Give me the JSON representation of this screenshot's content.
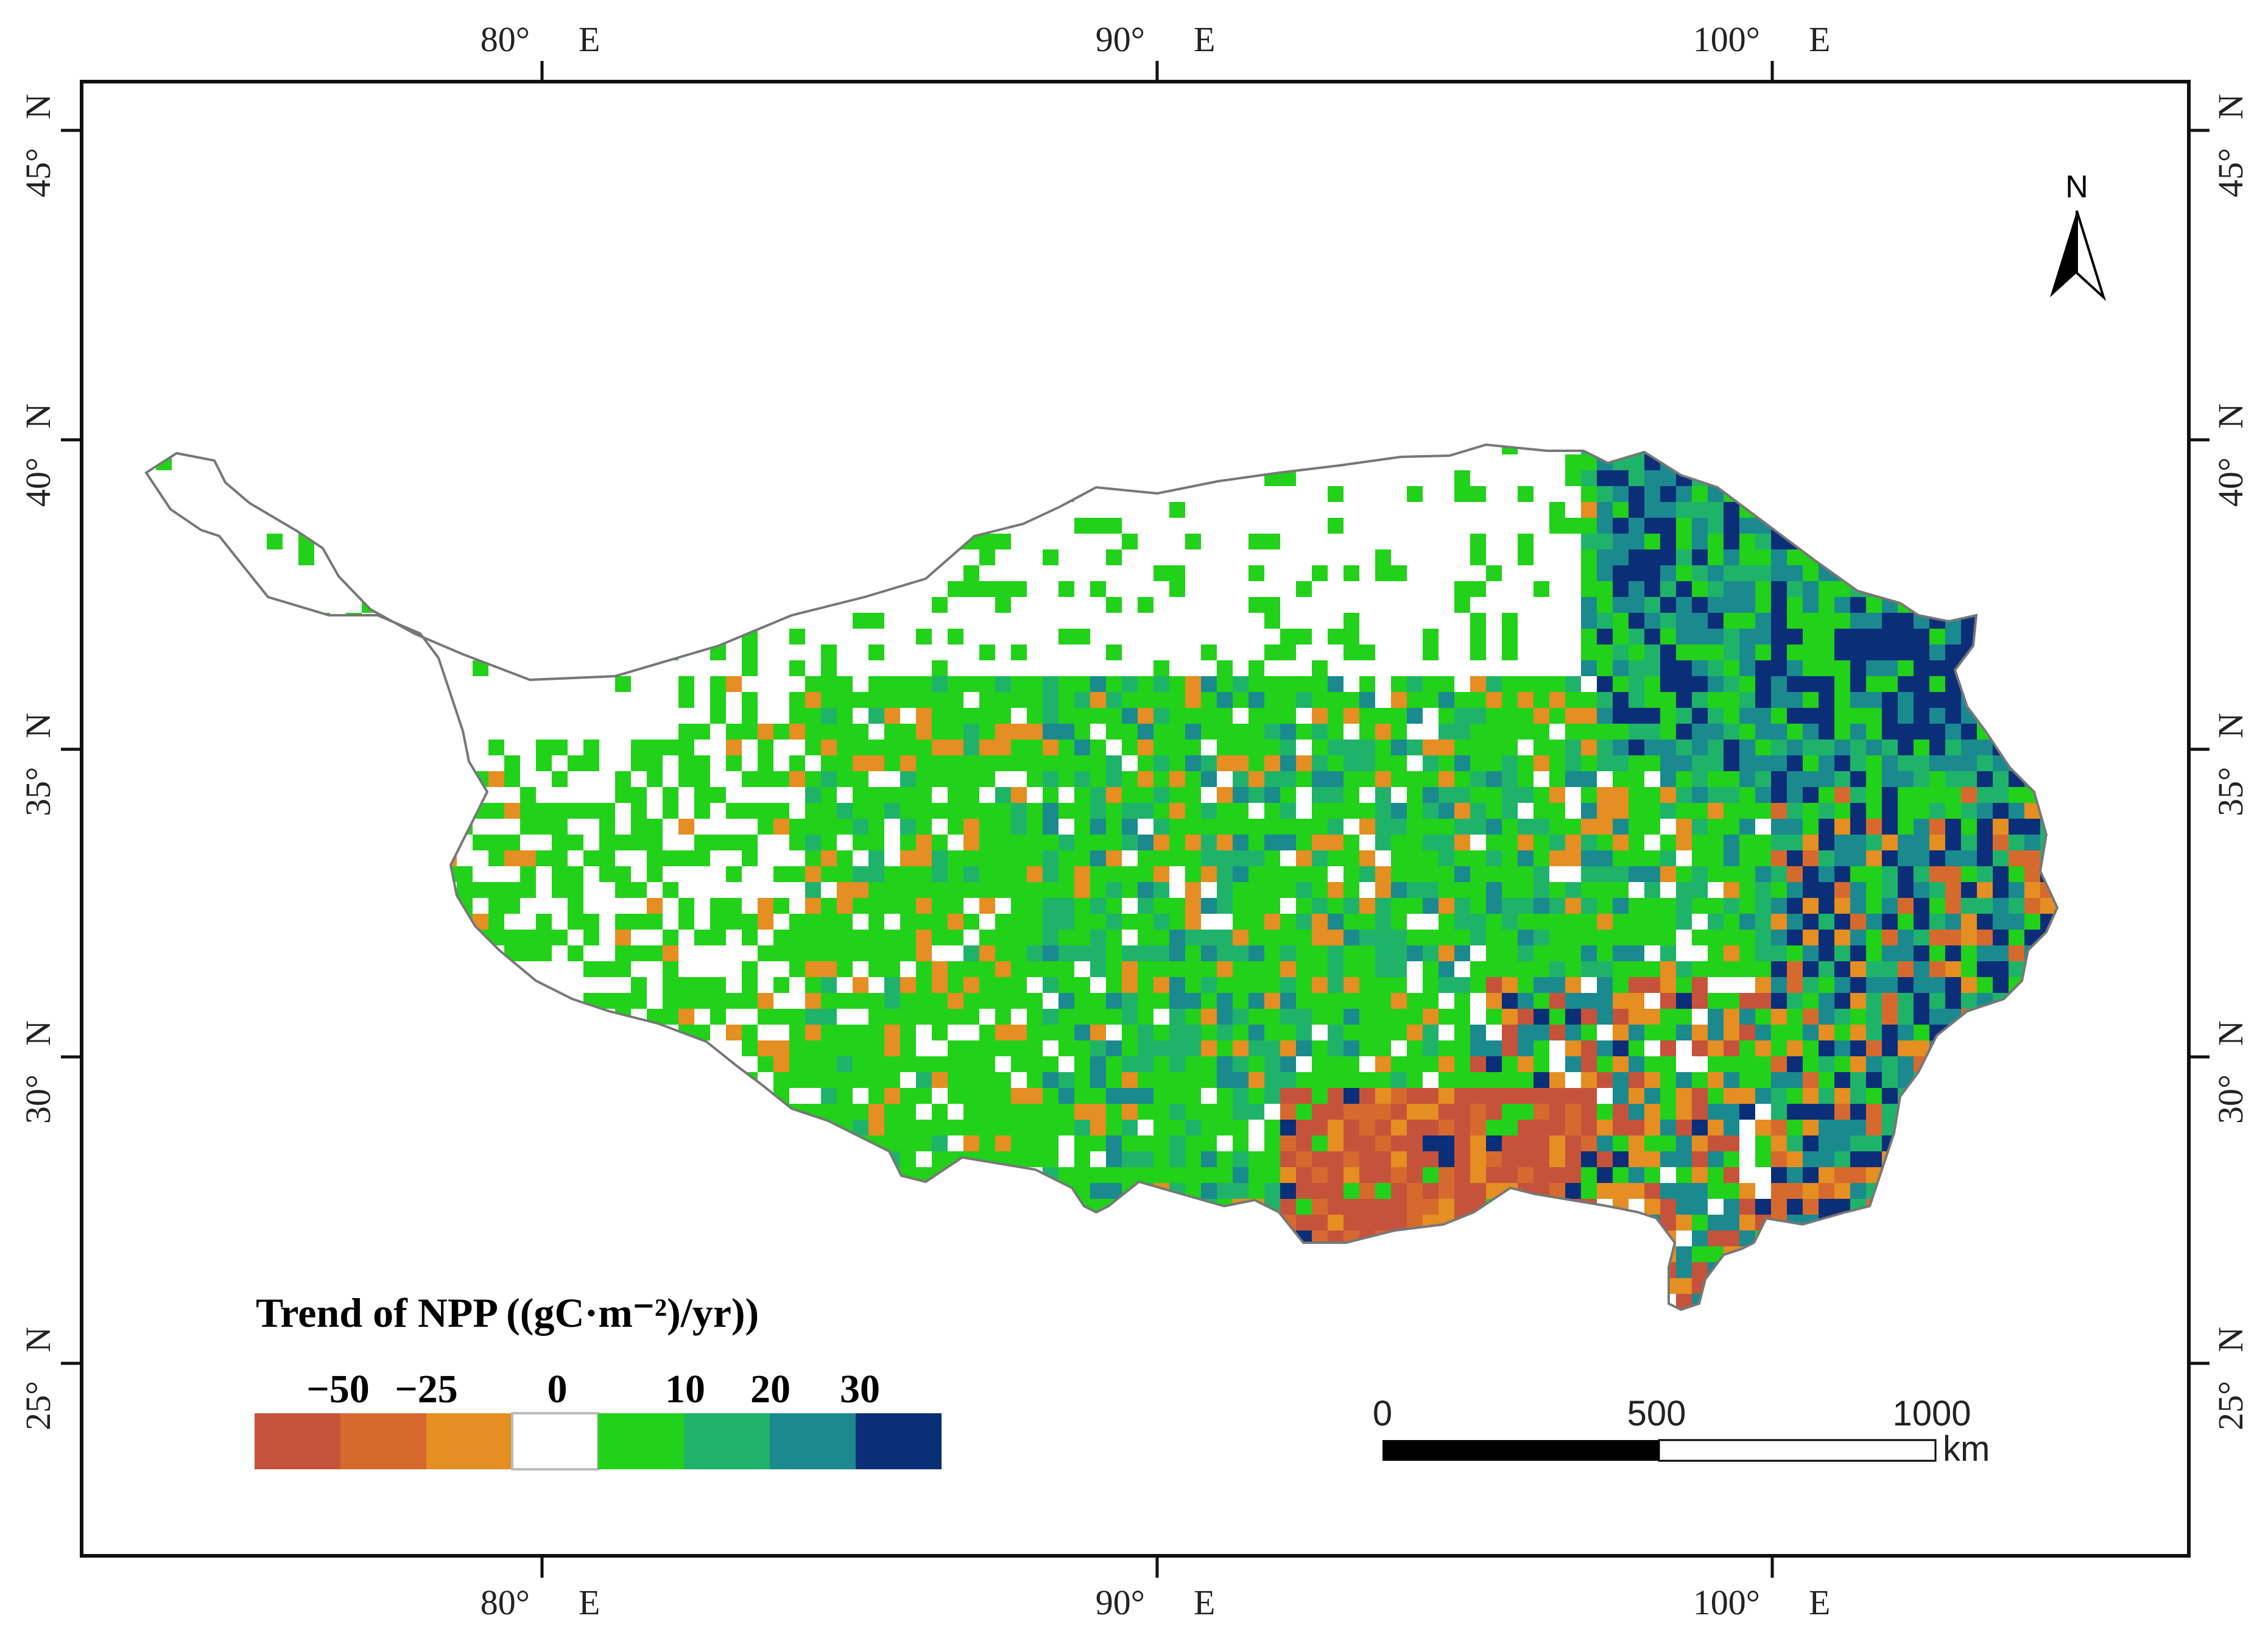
{
  "map": {
    "title": "Trend of NPP ((gC·m⁻²)/yr))",
    "colors": {
      "frame": "#111111",
      "boundary": "#777777",
      "background": "#ffffff"
    },
    "lon_ticks": [
      {
        "deg": "80°",
        "hemi": "E"
      },
      {
        "deg": "90°",
        "hemi": "E"
      },
      {
        "deg": "100°",
        "hemi": "E"
      }
    ],
    "lat_ticks": [
      {
        "deg": "45°",
        "hemi": "N"
      },
      {
        "deg": "40°",
        "hemi": "N"
      },
      {
        "deg": "35°",
        "hemi": "N"
      },
      {
        "deg": "30°",
        "hemi": "N"
      },
      {
        "deg": "25°",
        "hemi": "N"
      }
    ],
    "legend": {
      "title": "Trend of NPP ((gC·m⁻²)/yr))",
      "tick_labels": [
        "−50",
        "−25",
        "0",
        "10",
        "20",
        "30"
      ],
      "classes": [
        {
          "color": "#c5533b"
        },
        {
          "color": "#d66a2e"
        },
        {
          "color": "#e58e22"
        },
        {
          "color": "#ffffff"
        },
        {
          "color": "#22d11a"
        },
        {
          "color": "#1fb36a"
        },
        {
          "color": "#1a8a8e"
        },
        {
          "color": "#0b2e78"
        }
      ]
    },
    "scale_bar": {
      "labels": [
        "0",
        "500",
        "1000"
      ],
      "unit": "km"
    },
    "north_arrow": {
      "label": "N"
    }
  }
}
